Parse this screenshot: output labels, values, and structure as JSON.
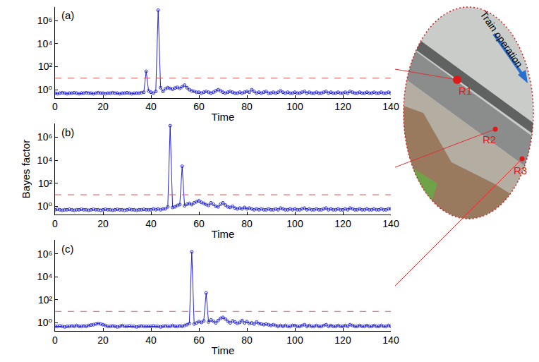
{
  "chart_data": [
    {
      "type": "line",
      "title": "(a)",
      "x_label": "Time",
      "log": "y",
      "grid": false,
      "marker": "open_circle",
      "color": "#2424d8",
      "xlim": [
        0,
        140
      ],
      "xticks": [
        0,
        20,
        40,
        60,
        80,
        100,
        120,
        140
      ],
      "ylim": [
        0.2,
        15000000
      ],
      "yticks": [
        {
          "value": 1,
          "label": "10⁰"
        },
        {
          "value": 100,
          "label": "10²"
        },
        {
          "value": 10000,
          "label": "10⁴"
        },
        {
          "value": 1000000,
          "label": "10⁶"
        }
      ],
      "threshold": {
        "value": 10,
        "color": "#e05a5a",
        "line_style": "dash"
      },
      "x": [
        0,
        1,
        2,
        3,
        4,
        5,
        6,
        7,
        8,
        9,
        10,
        11,
        12,
        13,
        14,
        15,
        16,
        17,
        18,
        19,
        20,
        21,
        22,
        23,
        24,
        25,
        26,
        27,
        28,
        29,
        30,
        31,
        32,
        33,
        34,
        35,
        36,
        37,
        38,
        39,
        40,
        41,
        42,
        43,
        44,
        45,
        46,
        47,
        48,
        49,
        50,
        51,
        52,
        53,
        54,
        55,
        56,
        57,
        58,
        59,
        60,
        61,
        62,
        63,
        64,
        65,
        66,
        67,
        68,
        69,
        70,
        71,
        72,
        73,
        74,
        75,
        76,
        77,
        78,
        79,
        80,
        81,
        82,
        83,
        84,
        85,
        86,
        87,
        88,
        89,
        90,
        91,
        92,
        93,
        94,
        95,
        96,
        97,
        98,
        99,
        100,
        101,
        102,
        103,
        104,
        105,
        106,
        107,
        108,
        109,
        110,
        111,
        112,
        113,
        114,
        115,
        116,
        117,
        118,
        119,
        120,
        121,
        122,
        123,
        124,
        125,
        126,
        127,
        128,
        129,
        130,
        131,
        132,
        133,
        134,
        135,
        136,
        137,
        138,
        139,
        140
      ],
      "values": [
        0.5,
        0.45,
        0.5,
        0.55,
        0.5,
        0.45,
        0.5,
        0.5,
        0.55,
        0.5,
        0.45,
        0.5,
        0.5,
        0.55,
        0.5,
        0.5,
        0.45,
        0.5,
        0.55,
        0.5,
        0.5,
        0.45,
        0.5,
        0.5,
        0.55,
        0.5,
        0.5,
        0.45,
        0.5,
        0.5,
        0.55,
        0.5,
        0.45,
        0.5,
        0.5,
        0.5,
        0.55,
        0.6,
        40,
        0.8,
        0.6,
        0.5,
        0.7,
        8000000,
        1.5,
        0.7,
        1.2,
        1.5,
        1.3,
        1.1,
        1.4,
        1.6,
        1.3,
        1.8,
        2.5,
        1.5,
        1,
        0.8,
        0.7,
        0.6,
        0.6,
        0.5,
        0.6,
        0.7,
        0.6,
        0.5,
        0.6,
        0.8,
        1,
        0.8,
        0.6,
        0.5,
        0.6,
        0.7,
        0.6,
        0.5,
        0.5,
        0.6,
        0.5,
        0.6,
        0.7,
        0.6,
        1,
        0.7,
        0.5,
        0.6,
        0.5,
        0.6,
        0.7,
        0.5,
        0.5,
        0.6,
        0.5,
        0.6,
        0.8,
        0.6,
        0.5,
        0.6,
        0.5,
        0.5,
        0.6,
        0.5,
        0.5,
        0.6,
        0.7,
        0.5,
        0.6,
        0.5,
        0.5,
        0.6,
        0.5,
        0.5,
        0.6,
        0.7,
        0.5,
        0.6,
        0.5,
        0.5,
        0.6,
        0.5,
        0.5,
        0.6,
        0.5,
        0.7,
        0.6,
        0.5,
        0.5,
        0.6,
        0.5,
        0.5,
        0.6,
        0.5,
        0.5,
        0.6,
        0.5,
        0.5,
        0.6,
        0.5,
        0.5,
        0.6,
        0.5
      ]
    },
    {
      "type": "line",
      "title": "(b)",
      "x_label": "Time",
      "y_label": "Bayes factor",
      "log": "y",
      "grid": false,
      "marker": "open_circle",
      "color": "#2424d8",
      "xlim": [
        0,
        140
      ],
      "xticks": [
        0,
        20,
        40,
        60,
        80,
        100,
        120,
        140
      ],
      "ylim": [
        0.2,
        15000000
      ],
      "yticks": [
        {
          "value": 1,
          "label": "10⁰"
        },
        {
          "value": 100,
          "label": "10²"
        },
        {
          "value": 10000,
          "label": "10⁴"
        },
        {
          "value": 1000000,
          "label": "10⁶"
        }
      ],
      "threshold": {
        "value": 10,
        "color": "#e05a5a",
        "line_style": "dash"
      },
      "x": [
        0,
        1,
        2,
        3,
        4,
        5,
        6,
        7,
        8,
        9,
        10,
        11,
        12,
        13,
        14,
        15,
        16,
        17,
        18,
        19,
        20,
        21,
        22,
        23,
        24,
        25,
        26,
        27,
        28,
        29,
        30,
        31,
        32,
        33,
        34,
        35,
        36,
        37,
        38,
        39,
        40,
        41,
        42,
        43,
        44,
        45,
        46,
        47,
        48,
        49,
        50,
        51,
        52,
        53,
        54,
        55,
        56,
        57,
        58,
        59,
        60,
        61,
        62,
        63,
        64,
        65,
        66,
        67,
        68,
        69,
        70,
        71,
        72,
        73,
        74,
        75,
        76,
        77,
        78,
        79,
        80,
        81,
        82,
        83,
        84,
        85,
        86,
        87,
        88,
        89,
        90,
        91,
        92,
        93,
        94,
        95,
        96,
        97,
        98,
        99,
        100,
        101,
        102,
        103,
        104,
        105,
        106,
        107,
        108,
        109,
        110,
        111,
        112,
        113,
        114,
        115,
        116,
        117,
        118,
        119,
        120,
        121,
        122,
        123,
        124,
        125,
        126,
        127,
        128,
        129,
        130,
        131,
        132,
        133,
        134,
        135,
        136,
        137,
        138,
        139,
        140
      ],
      "values": [
        0.5,
        0.55,
        0.5,
        0.45,
        0.5,
        0.5,
        0.55,
        0.5,
        0.45,
        0.5,
        0.5,
        0.55,
        0.5,
        0.5,
        0.45,
        0.5,
        0.55,
        0.5,
        0.5,
        0.45,
        0.5,
        0.55,
        0.5,
        0.5,
        0.45,
        0.5,
        0.55,
        0.5,
        0.5,
        0.45,
        0.5,
        0.55,
        0.5,
        0.5,
        0.45,
        0.5,
        0.5,
        0.55,
        0.5,
        0.5,
        0.5,
        0.6,
        0.5,
        0.6,
        0.5,
        0.6,
        0.6,
        0.9,
        10000000,
        0.8,
        0.9,
        1.2,
        1.4,
        3000,
        1.1,
        1.5,
        1.8,
        1.4,
        2,
        2.5,
        3,
        2.2,
        1.8,
        1.4,
        1.2,
        2,
        1.5,
        1,
        0.9,
        1.5,
        2,
        1.3,
        0.9,
        0.8,
        1,
        0.7,
        0.6,
        0.7,
        0.6,
        0.8,
        0.6,
        0.7,
        0.6,
        0.5,
        0.6,
        0.5,
        0.6,
        0.5,
        0.5,
        0.6,
        0.5,
        0.5,
        0.6,
        0.5,
        0.7,
        0.6,
        0.5,
        0.5,
        0.6,
        0.5,
        0.6,
        0.5,
        0.5,
        0.6,
        0.7,
        0.5,
        0.6,
        0.5,
        0.5,
        0.6,
        0.5,
        0.5,
        0.6,
        0.7,
        0.5,
        0.6,
        0.5,
        0.5,
        0.6,
        0.5,
        0.5,
        0.6,
        0.5,
        0.7,
        0.6,
        0.5,
        0.5,
        0.6,
        0.5,
        0.5,
        0.6,
        0.5,
        0.5,
        0.6,
        0.5,
        0.5,
        0.6,
        0.5,
        0.5,
        0.6,
        0.6
      ]
    },
    {
      "type": "line",
      "title": "(c)",
      "x_label": "Time",
      "log": "y",
      "grid": false,
      "marker": "open_circle",
      "color": "#2424d8",
      "xlim": [
        0,
        140
      ],
      "xticks": [
        0,
        20,
        40,
        60,
        80,
        100,
        120,
        140
      ],
      "ylim": [
        0.2,
        15000000
      ],
      "yticks": [
        {
          "value": 1,
          "label": "10⁰"
        },
        {
          "value": 100,
          "label": "10²"
        },
        {
          "value": 10000,
          "label": "10⁴"
        },
        {
          "value": 1000000,
          "label": "10⁶"
        }
      ],
      "threshold": {
        "value": 10,
        "color": "#e05a5a",
        "line_style": "dash"
      },
      "x": [
        0,
        1,
        2,
        3,
        4,
        5,
        6,
        7,
        8,
        9,
        10,
        11,
        12,
        13,
        14,
        15,
        16,
        17,
        18,
        19,
        20,
        21,
        22,
        23,
        24,
        25,
        26,
        27,
        28,
        29,
        30,
        31,
        32,
        33,
        34,
        35,
        36,
        37,
        38,
        39,
        40,
        41,
        42,
        43,
        44,
        45,
        46,
        47,
        48,
        49,
        50,
        51,
        52,
        53,
        54,
        55,
        56,
        57,
        58,
        59,
        60,
        61,
        62,
        63,
        64,
        65,
        66,
        67,
        68,
        69,
        70,
        71,
        72,
        73,
        74,
        75,
        76,
        77,
        78,
        79,
        80,
        81,
        82,
        83,
        84,
        85,
        86,
        87,
        88,
        89,
        90,
        91,
        92,
        93,
        94,
        95,
        96,
        97,
        98,
        99,
        100,
        101,
        102,
        103,
        104,
        105,
        106,
        107,
        108,
        109,
        110,
        111,
        112,
        113,
        114,
        115,
        116,
        117,
        118,
        119,
        120,
        121,
        122,
        123,
        124,
        125,
        126,
        127,
        128,
        129,
        130,
        131,
        132,
        133,
        134,
        135,
        136,
        137,
        138,
        139,
        140
      ],
      "values": [
        0.5,
        0.5,
        0.55,
        0.5,
        0.45,
        0.5,
        0.5,
        0.55,
        0.5,
        0.6,
        0.5,
        0.5,
        0.55,
        0.5,
        0.6,
        0.65,
        0.7,
        0.8,
        0.9,
        0.8,
        0.7,
        0.6,
        0.5,
        0.5,
        0.55,
        0.5,
        0.45,
        0.5,
        0.6,
        0.5,
        0.5,
        0.55,
        0.5,
        0.5,
        0.45,
        0.5,
        0.55,
        0.5,
        0.5,
        0.5,
        0.5,
        0.55,
        0.5,
        0.5,
        0.45,
        0.5,
        0.55,
        0.5,
        0.5,
        0.6,
        0.5,
        0.5,
        0.55,
        0.5,
        0.6,
        0.7,
        0.9,
        1500000,
        0.8,
        1,
        1.3,
        1.1,
        1.5,
        400,
        1.2,
        1.8,
        1.4,
        1,
        1.6,
        2.5,
        3,
        2.2,
        1.4,
        1,
        1.5,
        1.2,
        0.9,
        1.1,
        1.6,
        1,
        1.3,
        0.9,
        1,
        0.8,
        1.2,
        0.9,
        0.8,
        0.7,
        0.8,
        0.7,
        0.6,
        0.7,
        0.6,
        0.5,
        0.6,
        0.5,
        0.6,
        0.5,
        0.5,
        0.6,
        0.6,
        0.5,
        0.5,
        0.6,
        0.7,
        0.5,
        0.6,
        0.5,
        0.5,
        0.6,
        0.5,
        0.5,
        0.6,
        0.7,
        0.5,
        0.6,
        0.5,
        0.5,
        0.6,
        0.5,
        0.5,
        0.6,
        0.5,
        0.7,
        0.6,
        0.5,
        0.5,
        0.6,
        0.5,
        0.5,
        0.6,
        0.5,
        0.5,
        0.6,
        0.5,
        0.5,
        0.6,
        0.5,
        0.5,
        0.6,
        0.5
      ]
    }
  ],
  "diagram": {
    "point_labels": [
      "R1",
      "R2",
      "R3"
    ],
    "arrow_text": "Train operation"
  }
}
